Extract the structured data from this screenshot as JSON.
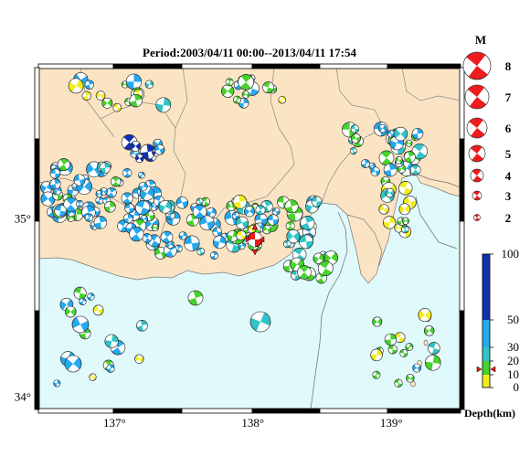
{
  "title": "Period:2003/04/11 00:00--2013/04/11 17:54",
  "map": {
    "lon_range": [
      136.45,
      139.5
    ],
    "lat_range": [
      33.93,
      35.85
    ],
    "lon_ticks": [
      137,
      138,
      139
    ],
    "lat_ticks": [
      34,
      35
    ],
    "lon_labels": [
      "137°",
      "138°",
      "139°"
    ],
    "lat_labels": [
      "34°",
      "35°"
    ],
    "colors": {
      "land": "#fbe4c3",
      "sea": "#e0fafc",
      "border": "#777777"
    },
    "event_count_shown": "many",
    "highlight_event": {
      "lon": 138.0,
      "lat": 34.92,
      "color": "#ee1c1c",
      "marker": "star"
    }
  },
  "magnitude_legend": {
    "label": "M",
    "entries": [
      "8",
      "7",
      "6",
      "5",
      "4",
      "3",
      "2"
    ]
  },
  "depth_scale": {
    "label": "Depth(km)",
    "tick_labels": [
      "100",
      "50",
      "30",
      "20",
      "10",
      "0"
    ],
    "stops": [
      {
        "from": 0,
        "to": 10,
        "color": "#f3ec1d"
      },
      {
        "from": 10,
        "to": 20,
        "color": "#46d32c"
      },
      {
        "from": 20,
        "to": 30,
        "color": "#2fc5c8"
      },
      {
        "from": 30,
        "to": 50,
        "color": "#24a9f0"
      },
      {
        "from": 50,
        "to": 100,
        "color": "#1030b0"
      }
    ],
    "marker_depth_km": 14
  },
  "chart_data": {
    "type": "map",
    "title": "Period:2003/04/11 00:00--2013/04/11 17:54",
    "xlabel": "",
    "ylabel": "",
    "series": []
  }
}
